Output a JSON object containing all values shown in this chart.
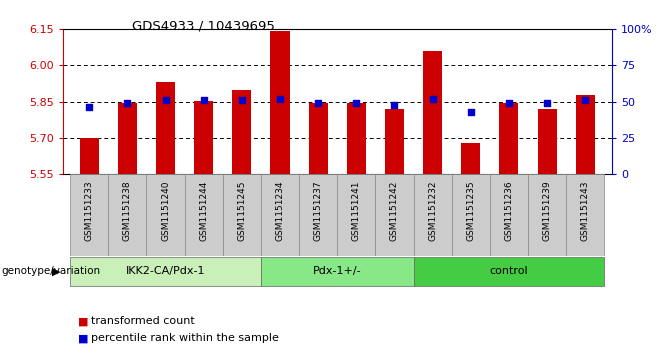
{
  "title": "GDS4933 / 10439695",
  "samples": [
    "GSM1151233",
    "GSM1151238",
    "GSM1151240",
    "GSM1151244",
    "GSM1151245",
    "GSM1151234",
    "GSM1151237",
    "GSM1151241",
    "GSM1151242",
    "GSM1151232",
    "GSM1151235",
    "GSM1151236",
    "GSM1151239",
    "GSM1151243"
  ],
  "bar_values": [
    5.7,
    5.843,
    5.93,
    5.852,
    5.898,
    6.143,
    5.843,
    5.843,
    5.82,
    6.06,
    5.678,
    5.843,
    5.82,
    5.878
  ],
  "percentile_values": [
    46,
    49,
    51,
    51,
    51,
    52,
    49,
    49,
    48,
    52,
    43,
    49,
    49,
    51
  ],
  "groups": [
    {
      "label": "IKK2-CA/Pdx-1",
      "start": 0,
      "end": 5,
      "color": "#c8f0b8"
    },
    {
      "label": "Pdx-1+/-",
      "start": 5,
      "end": 9,
      "color": "#88e888"
    },
    {
      "label": "control",
      "start": 9,
      "end": 14,
      "color": "#44cc44"
    }
  ],
  "y_min": 5.55,
  "y_max": 6.15,
  "y_ticks": [
    5.55,
    5.7,
    5.85,
    6.0,
    6.15
  ],
  "right_y_ticks": [
    0,
    25,
    50,
    75,
    100
  ],
  "bar_color": "#cc0000",
  "dot_color": "#0000cc",
  "background_color": "#ffffff",
  "label_color_left": "#cc0000",
  "label_color_right": "#0000cc",
  "genotype_label": "genotype/variation",
  "legend_bar": "transformed count",
  "legend_dot": "percentile rank within the sample",
  "bar_width": 0.5,
  "tick_bg_color": "#cccccc"
}
